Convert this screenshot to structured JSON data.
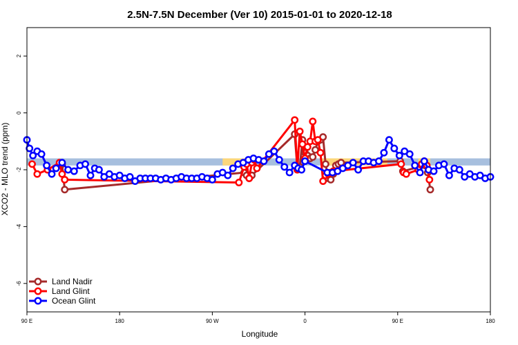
{
  "chart_data": {
    "type": "line",
    "title": "2.5N-7.5N December (Ver 10)   2015-01-01 to 2020-12-18",
    "xlabel": "Longitude",
    "ylabel": "XCO2 - MLO trend (ppm)",
    "xlim": [
      -90,
      180
    ],
    "ylim": [
      -7,
      3
    ],
    "x_ticks": [
      {
        "value": -90,
        "label": "90 E"
      },
      {
        "value": -36,
        "label": "180"
      },
      {
        "value": 18,
        "label": "90 W"
      },
      {
        "value": 72,
        "label": "0"
      },
      {
        "value": 126,
        "label": "90 E"
      },
      {
        "value": 180,
        "label": "180"
      }
    ],
    "y_ticks": [
      {
        "value": 2,
        "label": "2"
      },
      {
        "value": 0,
        "label": "0"
      },
      {
        "value": -2,
        "label": "-2"
      },
      {
        "value": -4,
        "label": "-4"
      },
      {
        "value": -6,
        "label": "-6"
      }
    ],
    "background_band": {
      "color": "#a7bfde",
      "ymin": -1.85,
      "ymax": -1.6,
      "xmin": -90,
      "xmax": 180
    },
    "land_bands": [
      {
        "color": "#fcd77a",
        "ymin": -1.85,
        "ymax": -1.6,
        "xmin": 24,
        "xmax": 40
      },
      {
        "color": "#fcd77a",
        "ymin": -1.85,
        "ymax": -1.6,
        "xmin": 82,
        "xmax": 120
      },
      {
        "color": "#fcd77a",
        "ymin": -1.85,
        "ymax": -1.6,
        "xmin": 138,
        "xmax": 145
      }
    ],
    "legend_position": "bottom-left",
    "series": [
      {
        "name": "Land Nadir",
        "color": "#a52a2a",
        "x": [
          -69.5,
          -68,
          36.5,
          38,
          39.5,
          41,
          66,
          67.5,
          69,
          70.5,
          72,
          73.5,
          75,
          76.5,
          78,
          79.5,
          81,
          82.5,
          84,
          85.5,
          87,
          88.5,
          90,
          91.5,
          93,
          127.5,
          129,
          142,
          143.5,
          145
        ],
        "y": [
          -1.8,
          -2.7,
          -2.1,
          -2.2,
          -2.3,
          -2.2,
          -0.75,
          -1.9,
          -1.9,
          -0.95,
          -1.4,
          -1.5,
          -1.6,
          -1.55,
          -1.3,
          -1.0,
          -0.95,
          -0.85,
          -1.8,
          -2.3,
          -2.35,
          -2.15,
          -1.85,
          -1.8,
          -1.75,
          -1.7,
          -2.05,
          -1.85,
          -2.1,
          -2.7
        ]
      },
      {
        "name": "Land Glint",
        "color": "#ff0000",
        "x": [
          -87,
          -84,
          -78,
          -71,
          -69.5,
          -68,
          33.5,
          36.5,
          38,
          39.5,
          41,
          42.5,
          44,
          66,
          67.5,
          69,
          70.5,
          72,
          73.5,
          75,
          76.5,
          78,
          79.5,
          81,
          82.5,
          84,
          85.5,
          87,
          88.5,
          128,
          129.5,
          131,
          138,
          140,
          141.5,
          143,
          144.5
        ],
        "y": [
          -1.8,
          -2.15,
          -2.0,
          -1.75,
          -2.15,
          -2.35,
          -2.45,
          -1.9,
          -1.8,
          -2.3,
          -1.75,
          -1.65,
          -1.95,
          -0.25,
          -2.0,
          -0.65,
          -1.1,
          -1.6,
          -1.2,
          -1.0,
          -0.3,
          -1.0,
          -0.95,
          -1.4,
          -2.4,
          -2.2,
          -2.15,
          -2.1,
          -2.05,
          -1.8,
          -2.1,
          -2.15,
          -2.0,
          -1.8,
          -1.7,
          -1.85,
          -2.35
        ]
      },
      {
        "name": "Ocean Glint",
        "color": "#0000ff",
        "x": [
          -90,
          -88.5,
          -86.5,
          -84,
          -81.5,
          -78.5,
          -75.5,
          -73,
          -69.5,
          -66,
          -62.5,
          -59,
          -56,
          -53,
          -50.5,
          -48,
          -45,
          -42,
          -39,
          -36,
          -33,
          -30,
          -27,
          -24,
          -21,
          -18,
          -15,
          -12,
          -9,
          -6,
          -3,
          0,
          3,
          6,
          9,
          12,
          15,
          18,
          21,
          24,
          27,
          30,
          33,
          36,
          39,
          42,
          45,
          48,
          51,
          54,
          57,
          60,
          63,
          66,
          68,
          70,
          72,
          85,
          88,
          91,
          94,
          97,
          100,
          103,
          106,
          109,
          112,
          115,
          118,
          121,
          124,
          127,
          130,
          133,
          136,
          139,
          141.5,
          144,
          147,
          150,
          153,
          156,
          159,
          162,
          165,
          168,
          171,
          174,
          177,
          180
        ],
        "y": [
          -0.95,
          -1.25,
          -1.5,
          -1.35,
          -1.45,
          -1.85,
          -2.15,
          -1.95,
          -1.75,
          -2.0,
          -2.05,
          -1.85,
          -1.8,
          -2.2,
          -1.95,
          -2.0,
          -2.25,
          -2.15,
          -2.25,
          -2.2,
          -2.3,
          -2.25,
          -2.4,
          -2.3,
          -2.3,
          -2.3,
          -2.3,
          -2.35,
          -2.3,
          -2.35,
          -2.3,
          -2.25,
          -2.3,
          -2.3,
          -2.3,
          -2.25,
          -2.3,
          -2.35,
          -2.15,
          -2.1,
          -2.2,
          -1.95,
          -1.8,
          -1.75,
          -1.65,
          -1.6,
          -1.65,
          -1.7,
          -1.45,
          -1.35,
          -1.65,
          -1.9,
          -2.1,
          -1.85,
          -1.95,
          -2.0,
          -1.7,
          -2.1,
          -2.1,
          -2.05,
          -1.95,
          -1.85,
          -1.75,
          -2.0,
          -1.7,
          -1.7,
          -1.75,
          -1.7,
          -1.4,
          -0.95,
          -1.25,
          -1.5,
          -1.35,
          -1.45,
          -1.85,
          -2.1,
          -1.7,
          -2.0,
          -2.05,
          -1.85,
          -1.8,
          -2.2,
          -1.95,
          -2.0,
          -2.25,
          -2.15,
          -2.25,
          -2.2,
          -2.3,
          -2.25
        ]
      }
    ]
  }
}
